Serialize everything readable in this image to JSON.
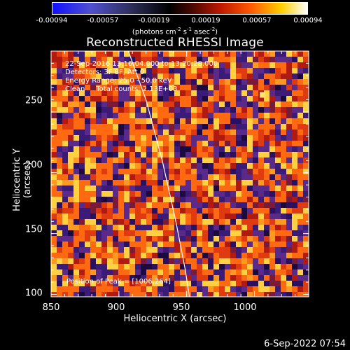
{
  "colorbar": {
    "ticks": [
      "-0.00094",
      "-0.00057",
      "-0.00019",
      "0.00019",
      "0.00057",
      "0.00094"
    ],
    "unit": "(photons cm",
    "unit_exp1": "-2",
    "unit_mid": " s",
    "unit_exp2": "-1",
    "unit_tail": " asec",
    "unit_exp3": "-2",
    "unit_end": ")"
  },
  "chart_data": {
    "type": "heatmap",
    "title": "Reconstructed RHESSI Image",
    "xlabel": "Heliocentric X (arcsec)",
    "ylabel": "Heliocentric Y (arcsec)",
    "xlim": [
      850,
      1040
    ],
    "ylim": [
      98,
      300
    ],
    "x_ticks": [
      "850",
      "900",
      "950",
      "1000"
    ],
    "y_ticks": [
      "100",
      "150",
      "200",
      "250"
    ],
    "x_tick_values": [
      850,
      900,
      950,
      1000
    ],
    "y_tick_values": [
      100,
      150,
      200,
      250
    ],
    "value_range": [
      -0.00094,
      0.00094
    ],
    "annotations": [
      "22-Sep-2016 13:16:04.000 to 13:20:28.000",
      "Detectors: 3F 8F, Att 0",
      "Energy Range: 25.0 - 50.0 keV",
      "Clean     Total counts: 2.13E+03"
    ],
    "peak_label": "Position of Peak = [1006,264]",
    "peak": [
      1006,
      264
    ],
    "limb_curve": {
      "x": [
        907,
        920,
        932,
        942,
        949,
        952
      ],
      "y": [
        300,
        260,
        210,
        160,
        120,
        98
      ]
    }
  },
  "datestamp": "6-Sep-2022 07:54"
}
